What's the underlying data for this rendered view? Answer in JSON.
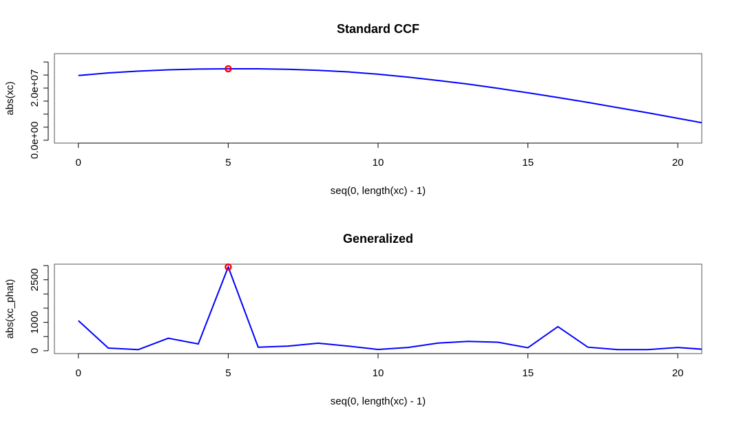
{
  "colors": {
    "series": "#0000ff",
    "peak": "#ff0000",
    "frame": "#555555"
  },
  "chart_data": [
    {
      "type": "line",
      "title": "Standard CCF",
      "xlabel": "seq(0, length(xc) - 1)",
      "ylabel": "abs(xc)",
      "xlim": [
        -0.8,
        20.8
      ],
      "ylim": [
        -1100000,
        33200000
      ],
      "x_ticks": [
        0,
        5,
        10,
        15,
        20
      ],
      "x_tick_labels": [
        "0",
        "5",
        "10",
        "15",
        "20"
      ],
      "y_ticks": [
        0,
        5000000,
        10000000,
        15000000,
        20000000,
        25000000,
        30000000
      ],
      "y_tick_labels": [
        "0.0e+00",
        "",
        "",
        "",
        "2.0e+07",
        "",
        ""
      ],
      "x": [
        0,
        1,
        2,
        3,
        4,
        5,
        6,
        7,
        8,
        9,
        10,
        11,
        12,
        13,
        14,
        15,
        16,
        17,
        18,
        19,
        20,
        21
      ],
      "values": [
        24800000,
        25800000,
        26500000,
        27000000,
        27300000,
        27400000,
        27400000,
        27200000,
        26800000,
        26200000,
        25300000,
        24200000,
        22900000,
        21500000,
        19900000,
        18200000,
        16400000,
        14500000,
        12500000,
        10500000,
        8400000,
        6300000
      ],
      "peak": {
        "x": 5,
        "y": 27400000
      }
    },
    {
      "type": "line",
      "title": "Generalized",
      "xlabel": "seq(0, length(xc) - 1)",
      "ylabel": "abs(xc_phat)",
      "xlim": [
        -0.8,
        20.8
      ],
      "ylim": [
        -100,
        3050
      ],
      "x_ticks": [
        0,
        5,
        10,
        15,
        20
      ],
      "x_tick_labels": [
        "0",
        "5",
        "10",
        "15",
        "20"
      ],
      "y_ticks": [
        0,
        500,
        1000,
        1500,
        2000,
        2500,
        3000
      ],
      "y_tick_labels": [
        "0",
        "",
        "1000",
        "",
        "",
        "2500",
        ""
      ],
      "x": [
        0,
        1,
        2,
        3,
        4,
        5,
        6,
        7,
        8,
        9,
        10,
        11,
        12,
        13,
        14,
        15,
        16,
        17,
        18,
        19,
        20,
        21
      ],
      "values": [
        1060,
        95,
        40,
        440,
        240,
        2950,
        125,
        165,
        265,
        165,
        45,
        115,
        270,
        330,
        300,
        105,
        850,
        125,
        40,
        40,
        115,
        40
      ],
      "peak": {
        "x": 5,
        "y": 2950
      }
    }
  ]
}
